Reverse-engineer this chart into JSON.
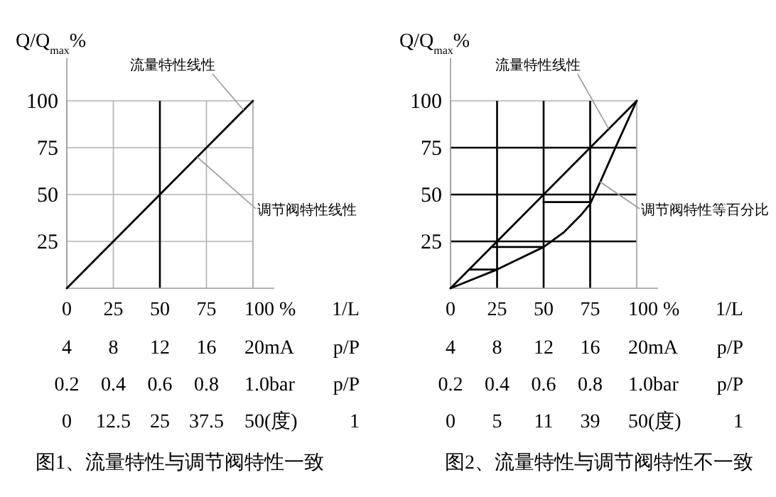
{
  "chart_data": [
    {
      "type": "line",
      "title": "图1、流量特性与调节阀特性一致",
      "ylabel": "Q/Q$_{max}$%",
      "xlabel": "1/L",
      "x2label": "p/P",
      "xlim": [
        0,
        100
      ],
      "xticks": [
        0,
        25,
        50,
        75,
        {
          "value": 100,
          "label": "100 %"
        }
      ],
      "x2lim": [
        4,
        20
      ],
      "x2ticks": [
        4,
        8,
        12,
        16,
        {
          "value": 20,
          "label": "20mA"
        }
      ],
      "ylim": [
        0,
        100
      ],
      "yticks": [
        25,
        50,
        75,
        100
      ],
      "grid": true,
      "series": [
        {
          "color": "#000000",
          "x": [
            0,
            100
          ],
          "values": [
            0,
            100
          ]
        }
      ],
      "ref_lines": [
        {
          "axis": "x",
          "value": 50,
          "color": "#000000"
        }
      ],
      "annotations": [
        {
          "text": "流量特性线性",
          "x": 95,
          "y": 95
        },
        {
          "text": "调节阀特性线性",
          "x": 70,
          "y": 70
        },
        "0.2",
        "0.4",
        "0.6",
        "0.8",
        "1.0bar",
        "p/P",
        "0",
        "12.5",
        "25",
        "37.5",
        "50(度)",
        "1"
      ]
    },
    {
      "type": "line",
      "title": "图2、流量特性与调节阀特性不一致",
      "ylabel": "Q/Q$_{max}$%",
      "xlabel": "1/L",
      "x2label": "p/P",
      "xlim": [
        0,
        100
      ],
      "xticks": [
        0,
        25,
        50,
        75,
        {
          "value": 100,
          "label": "100 %"
        }
      ],
      "x2lim": [
        4,
        20
      ],
      "x2ticks": [
        4,
        8,
        12,
        16,
        {
          "value": 20,
          "label": "20mA"
        }
      ],
      "ylim": [
        0,
        100
      ],
      "yticks": [
        25,
        50,
        75,
        100
      ],
      "grid": true,
      "series": [
        {
          "color": "#000000",
          "x": [
            0,
            100
          ],
          "values": [
            0,
            100
          ]
        },
        {
          "color": "#000000",
          "x": [
            0,
            25,
            50,
            61,
            70,
            75,
            81,
            89,
            100
          ],
          "values": [
            0,
            10,
            22,
            30,
            39,
            45,
            58,
            76,
            100
          ]
        },
        {
          "color": "#000000",
          "x": [
            10,
            25
          ],
          "values": [
            10,
            10
          ]
        },
        {
          "color": "#000000",
          "x": [
            22,
            50
          ],
          "values": [
            22,
            22
          ]
        },
        {
          "color": "#000000",
          "x": [
            50,
            75
          ],
          "values": [
            46,
            46
          ]
        }
      ],
      "ref_lines": [
        {
          "axis": "x",
          "value": 25,
          "color": "#000000"
        },
        {
          "axis": "x",
          "value": 50,
          "color": "#000000"
        },
        {
          "axis": "x",
          "value": 75,
          "color": "#000000"
        },
        {
          "axis": "y",
          "value": 25,
          "color": "#000000"
        },
        {
          "axis": "y",
          "value": 50,
          "color": "#000000"
        },
        {
          "axis": "y",
          "value": 75,
          "color": "#000000"
        }
      ],
      "annotations": [
        {
          "text": "流量特性线性",
          "x": 85,
          "y": 85
        },
        {
          "text": "调节阀特性等百分比",
          "x": 80,
          "y": 57
        },
        "0.2",
        "0.4",
        "0.6",
        "0.8",
        "1.0bar",
        "p/P",
        "0",
        "5",
        "11",
        "39",
        "50(度)",
        "1"
      ]
    }
  ]
}
